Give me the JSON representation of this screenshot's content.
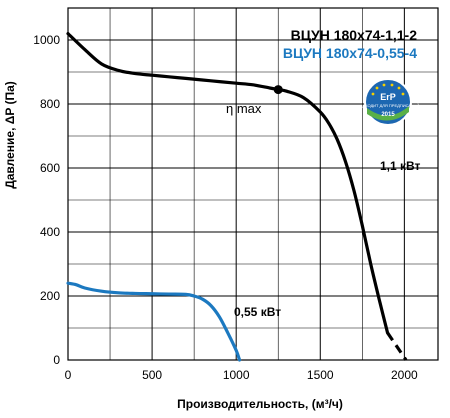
{
  "chart_data": {
    "type": "line",
    "xlabel": "Производительность, (м³/ч)",
    "ylabel": "Давление, ΔP (Па)",
    "xlim": [
      0,
      2200
    ],
    "ylim": [
      0,
      1100
    ],
    "x_ticks": [
      "0",
      "500",
      "1000",
      "1500",
      "2000"
    ],
    "y_ticks": [
      "0",
      "200",
      "400",
      "600",
      "800",
      "1000"
    ],
    "grid": true,
    "legend_position": "top-right",
    "series": [
      {
        "name": "ВЦУН 180х74-1,1-2",
        "color": "#000000",
        "power_label": "1,1 кВт",
        "x": [
          0,
          100,
          200,
          300,
          400,
          500,
          600,
          700,
          800,
          900,
          1000,
          1100,
          1200,
          1250,
          1300,
          1400,
          1500,
          1550,
          1600,
          1650,
          1700,
          1750,
          1800,
          1850,
          1900
        ],
        "y": [
          1020,
          970,
          925,
          905,
          895,
          890,
          885,
          880,
          875,
          870,
          865,
          860,
          850,
          845,
          840,
          820,
          775,
          740,
          690,
          620,
          530,
          420,
          300,
          190,
          85
        ],
        "extension_x": [
          1900,
          2010
        ],
        "extension_y": [
          85,
          0
        ]
      },
      {
        "name": "ВЦУН 180х74-0,55-4",
        "color": "#1c79c0",
        "power_label": "0,55 кВт",
        "x": [
          0,
          50,
          100,
          200,
          300,
          400,
          500,
          600,
          700,
          750,
          800,
          850,
          900,
          950,
          1000,
          1020
        ],
        "y": [
          240,
          235,
          225,
          215,
          210,
          208,
          207,
          206,
          205,
          200,
          190,
          170,
          135,
          85,
          30,
          0
        ]
      }
    ],
    "annotations": {
      "eta_label": "η max",
      "eta_point": [
        1250,
        845
      ]
    }
  },
  "badge": {
    "title": "ErP",
    "subtitle": "ПОДХОДИТ ДЛЯ ПРЕДПИСАНИЙ",
    "year": "2015"
  },
  "colors": {
    "series1": "#000000",
    "series2": "#1c79c0",
    "grid": "#000000"
  }
}
